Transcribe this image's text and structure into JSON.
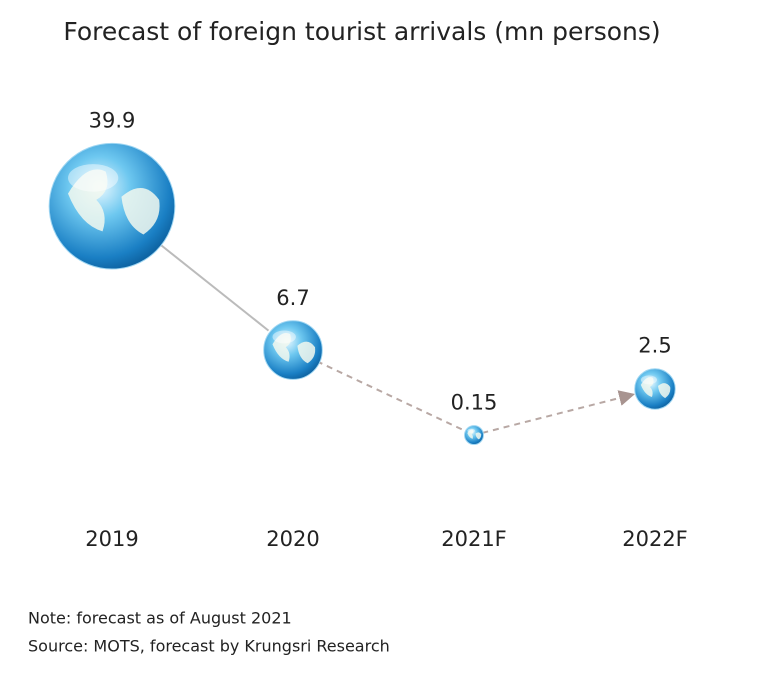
{
  "chart_data": {
    "type": "bubble",
    "title": "Forecast of foreign tourist arrivals (mn persons)",
    "categories": [
      "2019",
      "2020",
      "2021F",
      "2022F"
    ],
    "values": [
      39.9,
      6.7,
      0.15,
      2.5
    ],
    "notes": [
      "Note: forecast as of August 2021",
      "Source: MOTS, forecast by Krungsri Research"
    ]
  }
}
